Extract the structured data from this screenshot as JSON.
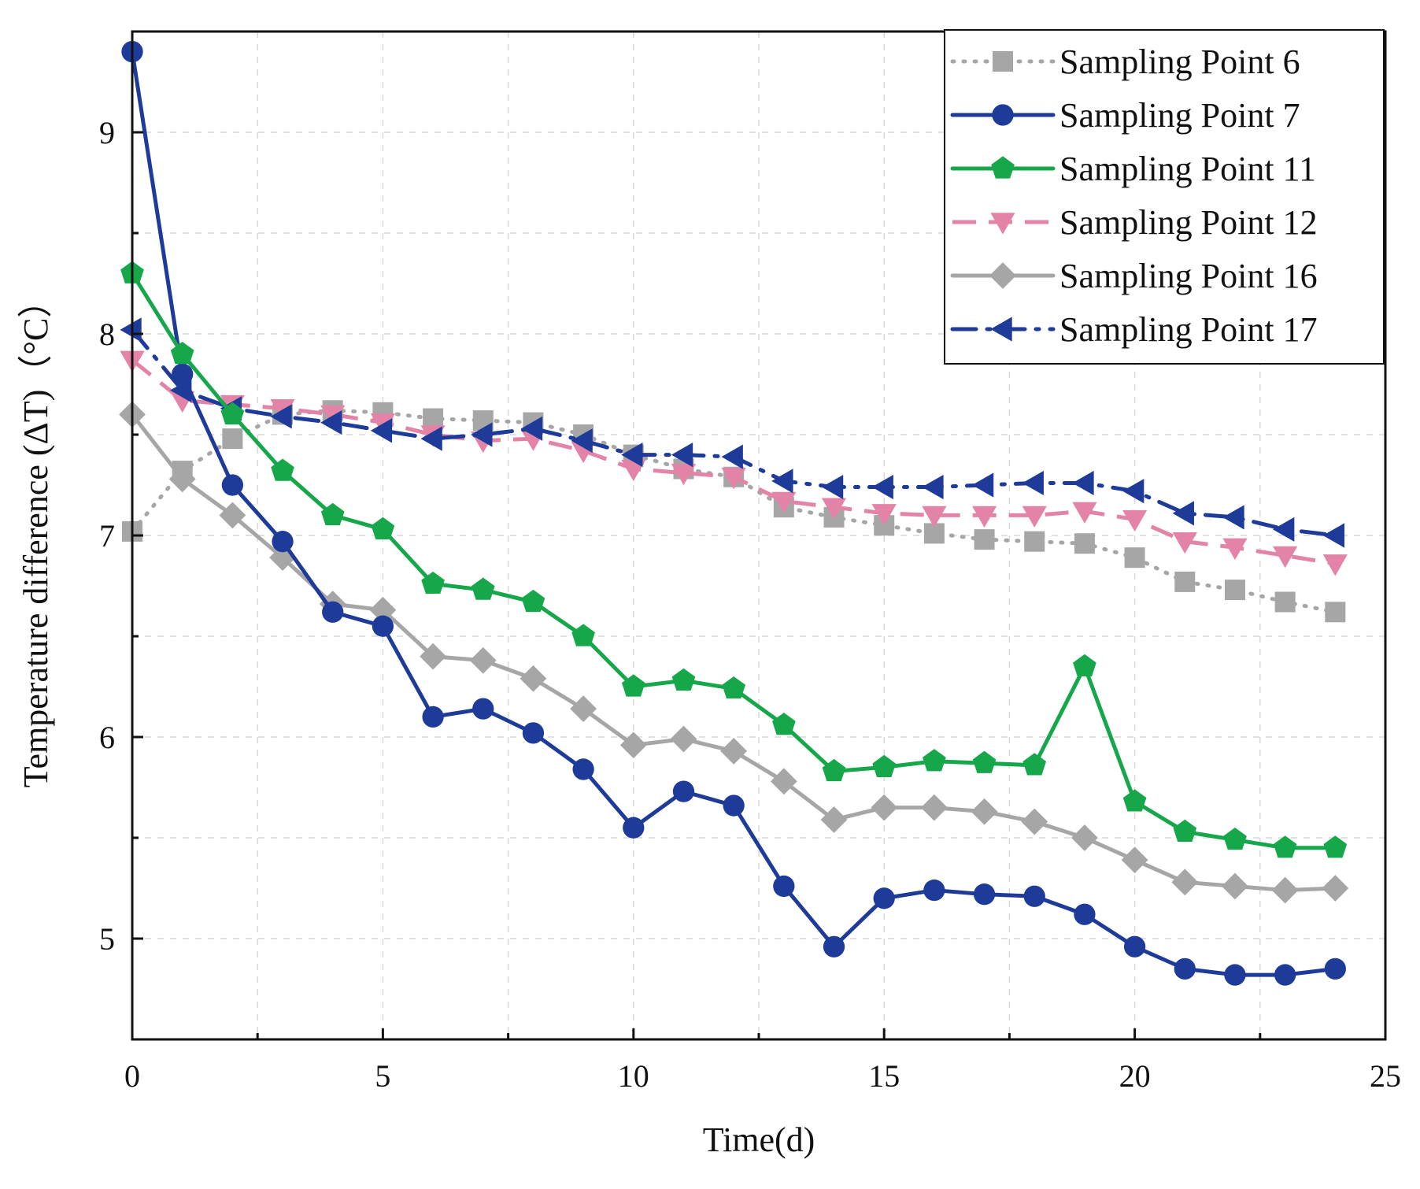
{
  "chart_data": {
    "type": "line",
    "title": "",
    "xlabel": "Time(d)",
    "ylabel": "Temperature difference (ΔT)（°C）",
    "xlim": [
      0,
      25
    ],
    "ylim": [
      4.5,
      9.5
    ],
    "xticks": [
      0,
      5,
      10,
      15,
      20,
      25
    ],
    "yticks": [
      5,
      6,
      7,
      8,
      9
    ],
    "grid": true,
    "legend_position": "top-right",
    "x": [
      0,
      1,
      2,
      3,
      4,
      5,
      6,
      7,
      8,
      9,
      10,
      11,
      12,
      13,
      14,
      15,
      16,
      17,
      18,
      19,
      20,
      21,
      22,
      23,
      24
    ],
    "series": [
      {
        "name": "Sampling Point 6",
        "color": "#a6a6a6",
        "line_style": "dotted",
        "marker": "square",
        "values": [
          7.02,
          7.32,
          7.48,
          7.6,
          7.62,
          7.61,
          7.58,
          7.57,
          7.56,
          7.5,
          7.4,
          7.33,
          7.29,
          7.14,
          7.09,
          7.05,
          7.01,
          6.98,
          6.97,
          6.96,
          6.89,
          6.77,
          6.73,
          6.67,
          6.62
        ]
      },
      {
        "name": "Sampling Point 7",
        "color": "#1e3b9a",
        "line_style": "solid",
        "marker": "circle",
        "values": [
          9.4,
          7.8,
          7.25,
          6.97,
          6.62,
          6.55,
          6.1,
          6.14,
          6.02,
          5.84,
          5.55,
          5.73,
          5.66,
          5.26,
          4.96,
          5.2,
          5.24,
          5.22,
          5.21,
          5.12,
          4.96,
          4.85,
          4.82,
          4.82,
          4.85
        ]
      },
      {
        "name": "Sampling Point 11",
        "color": "#17a74b",
        "line_style": "solid",
        "marker": "pentagon",
        "values": [
          8.3,
          7.9,
          7.6,
          7.32,
          7.1,
          7.03,
          6.76,
          6.73,
          6.67,
          6.5,
          6.25,
          6.28,
          6.24,
          6.06,
          5.83,
          5.85,
          5.88,
          5.87,
          5.86,
          6.35,
          5.68,
          5.53,
          5.49,
          5.45,
          5.45
        ]
      },
      {
        "name": "Sampling Point 12",
        "color": "#e483a8",
        "line_style": "dashed",
        "marker": "triangle-down",
        "values": [
          7.87,
          7.67,
          7.65,
          7.63,
          7.6,
          7.56,
          7.5,
          7.47,
          7.48,
          7.42,
          7.33,
          7.31,
          7.29,
          7.17,
          7.14,
          7.11,
          7.1,
          7.1,
          7.1,
          7.12,
          7.08,
          6.97,
          6.94,
          6.9,
          6.86
        ]
      },
      {
        "name": "Sampling Point 16",
        "color": "#a6a6a6",
        "line_style": "solid",
        "marker": "diamond",
        "values": [
          7.6,
          7.28,
          7.1,
          6.89,
          6.66,
          6.63,
          6.4,
          6.38,
          6.29,
          6.14,
          5.96,
          5.99,
          5.93,
          5.78,
          5.59,
          5.65,
          5.65,
          5.63,
          5.58,
          5.5,
          5.39,
          5.28,
          5.26,
          5.24,
          5.25
        ]
      },
      {
        "name": "Sampling Point 17",
        "color": "#1e3b9a",
        "line_style": "dashdot",
        "marker": "triangle-left",
        "values": [
          8.02,
          7.72,
          7.63,
          7.59,
          7.56,
          7.52,
          7.48,
          7.5,
          7.53,
          7.47,
          7.4,
          7.4,
          7.39,
          7.27,
          7.24,
          7.24,
          7.24,
          7.25,
          7.26,
          7.26,
          7.22,
          7.11,
          7.09,
          7.03,
          7.0
        ]
      }
    ]
  }
}
